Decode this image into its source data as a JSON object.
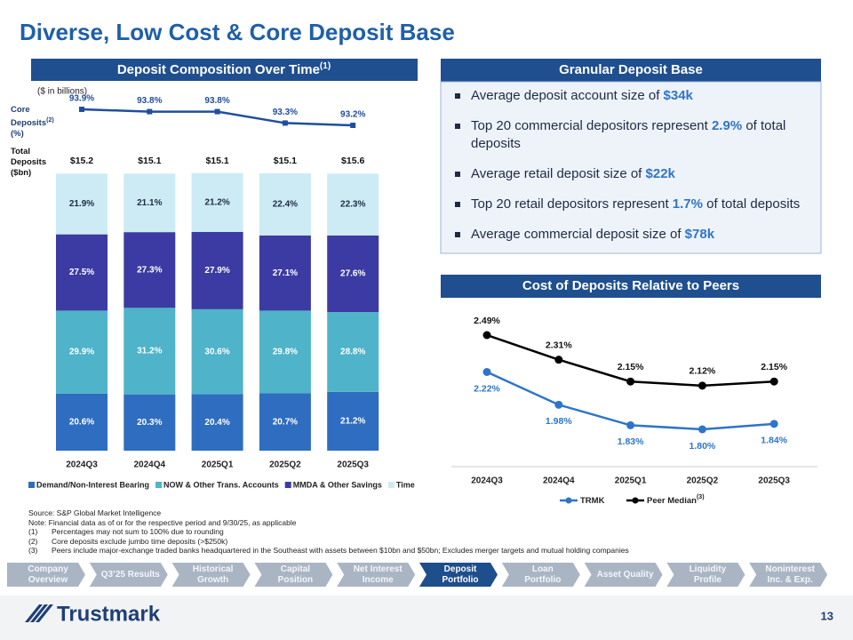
{
  "title": "Diverse, Low Cost & Core Deposit Base",
  "chart_data": [
    {
      "type": "bar",
      "stacked": true,
      "title": "Deposit Composition Over Time",
      "title_note": "(1)",
      "subtitle": "($ in billions)",
      "categories": [
        "2024Q3",
        "2024Q4",
        "2025Q1",
        "2025Q2",
        "2025Q3"
      ],
      "core_deposits": {
        "label": "Core Deposits",
        "label_note": "(2)",
        "unit": "(%)",
        "color": "#1f4e9c",
        "values": [
          93.9,
          93.8,
          93.8,
          93.3,
          93.2
        ],
        "value_labels": [
          "93.9%",
          "93.8%",
          "93.8%",
          "93.3%",
          "93.2%"
        ]
      },
      "total_deposits": {
        "label": "Total Deposits",
        "unit": "($bn)",
        "values": [
          15.2,
          15.1,
          15.1,
          15.1,
          15.6
        ],
        "value_labels": [
          "$15.2",
          "$15.1",
          "$15.1",
          "$15.1",
          "$15.6"
        ]
      },
      "series": [
        {
          "name": "Demand/Non-Interest Bearing",
          "color": "#2e6dbf",
          "values": [
            20.6,
            20.3,
            20.4,
            20.7,
            21.2
          ],
          "value_labels": [
            "20.6%",
            "20.3%",
            "20.4%",
            "20.7%",
            "21.2%"
          ]
        },
        {
          "name": "NOW & Other Trans. Accounts",
          "color": "#4fb3c9",
          "values": [
            29.9,
            31.2,
            30.6,
            29.8,
            28.8
          ],
          "value_labels": [
            "29.9%",
            "31.2%",
            "30.6%",
            "29.8%",
            "28.8%"
          ]
        },
        {
          "name": "MMDA & Other Savings",
          "color": "#3b3ba3",
          "values": [
            27.5,
            27.3,
            27.9,
            27.1,
            27.6
          ],
          "value_labels": [
            "27.5%",
            "27.3%",
            "27.9%",
            "27.1%",
            "27.6%"
          ]
        },
        {
          "name": "Time",
          "color": "#cdebf5",
          "values": [
            21.9,
            21.1,
            21.2,
            22.4,
            22.3
          ],
          "value_labels": [
            "21.9%",
            "21.1%",
            "21.2%",
            "22.4%",
            "22.3%"
          ]
        }
      ]
    },
    {
      "type": "line",
      "title": "Cost of Deposits Relative to Peers",
      "categories": [
        "2024Q3",
        "2024Q4",
        "2025Q1",
        "2025Q2",
        "2025Q3"
      ],
      "series": [
        {
          "name": "TRMK",
          "color": "#2e75c9",
          "values": [
            2.22,
            1.98,
            1.83,
            1.8,
            1.84
          ],
          "value_labels": [
            "2.22%",
            "1.98%",
            "1.83%",
            "1.80%",
            "1.84%"
          ]
        },
        {
          "name": "Peer Median",
          "name_note": "(3)",
          "color": "#000000",
          "values": [
            2.49,
            2.31,
            2.15,
            2.12,
            2.15
          ],
          "value_labels": [
            "2.49%",
            "2.31%",
            "2.15%",
            "2.12%",
            "2.15%"
          ]
        }
      ]
    }
  ],
  "panel": {
    "title": "Granular Deposit Base",
    "bullets": [
      {
        "text": "Average deposit account size of ",
        "highlight": "$34k"
      },
      {
        "text": "Top 20 commercial depositors represent ",
        "highlight": "2.9%",
        "suffix": " of total deposits"
      },
      {
        "text": "Average retail deposit size of ",
        "highlight": "$22k"
      },
      {
        "text": "Top 20 retail depositors represent ",
        "highlight": "1.7%",
        "suffix": " of total deposits"
      },
      {
        "text": "Average commercial deposit size of ",
        "highlight": "$78k"
      }
    ]
  },
  "footnotes": {
    "source": "Source: S&P Global Market Intelligence",
    "note": "Note: Financial data as of or for the respective period and 9/30/25, as applicable",
    "items": [
      {
        "marker": "(1)",
        "text": "Percentages may not sum to 100% due to rounding"
      },
      {
        "marker": "(2)",
        "text": "Core deposits exclude jumbo time deposits (>$250k)"
      },
      {
        "marker": "(3)",
        "text": "Peers include major-exchange traded banks headquartered in the Southeast with assets between $10bn and $50bn; Excludes merger targets and mutual holding companies"
      }
    ]
  },
  "nav": {
    "active": 5,
    "tabs": [
      [
        "Company",
        "Overview"
      ],
      [
        "Q3’25 Results"
      ],
      [
        "Historical",
        "Growth"
      ],
      [
        "Capital",
        "Position"
      ],
      [
        "Net Interest",
        "Income"
      ],
      [
        "Deposit",
        "Portfolio"
      ],
      [
        "Loan",
        "Portfolio"
      ],
      [
        "Asset Quality"
      ],
      [
        "Liquidity",
        "Profile"
      ],
      [
        "Noninterest",
        "Inc. & Exp."
      ]
    ]
  },
  "footer": {
    "logo": "Trustmark",
    "page": "13"
  }
}
